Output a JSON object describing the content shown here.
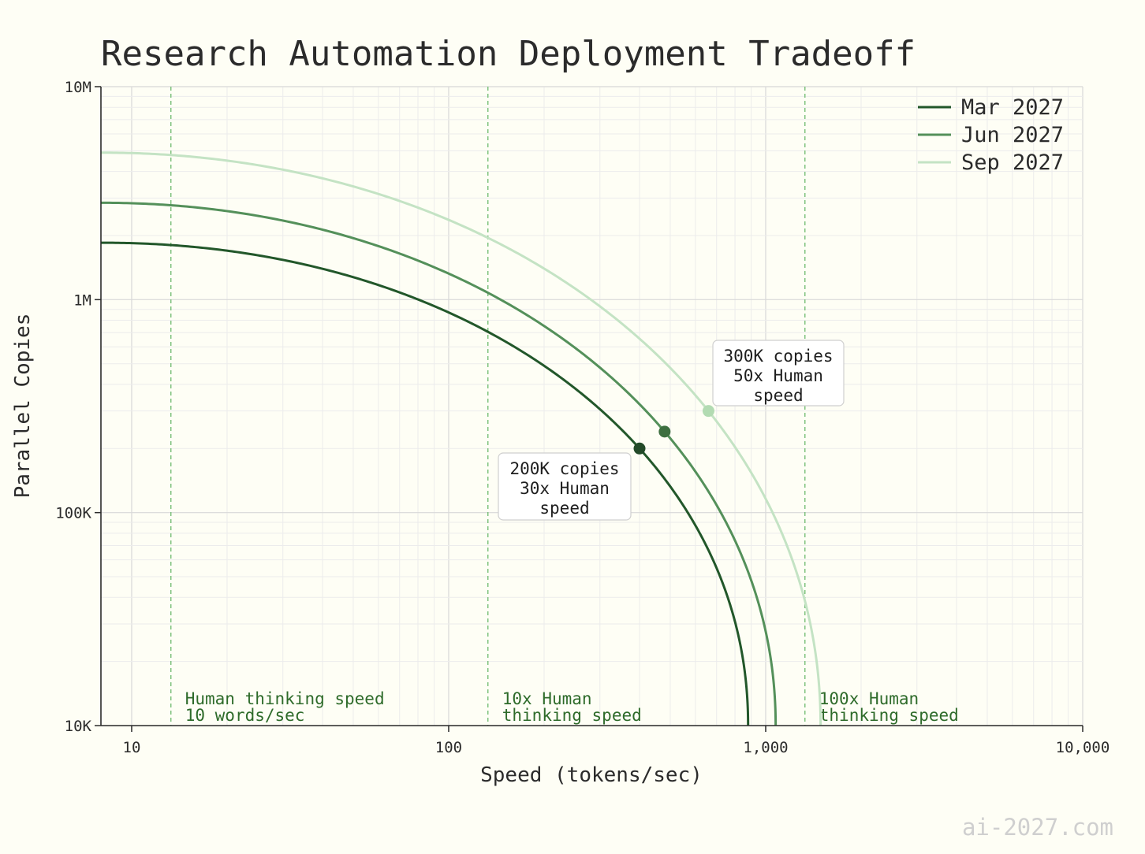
{
  "chart_data": {
    "type": "line",
    "title": "Research Automation Deployment Tradeoff",
    "xlabel": "Speed (tokens/sec)",
    "ylabel": "Parallel Copies",
    "x_scale": "log",
    "y_scale": "log",
    "xlim": [
      8,
      10000
    ],
    "ylim": [
      10000,
      10000000
    ],
    "x_ticks": [
      {
        "value": 10,
        "label": "10"
      },
      {
        "value": 100,
        "label": "100"
      },
      {
        "value": 1000,
        "label": "1,000"
      },
      {
        "value": 10000,
        "label": "10,000"
      }
    ],
    "y_ticks": [
      {
        "value": 10000,
        "label": "10K"
      },
      {
        "value": 100000,
        "label": "100K"
      },
      {
        "value": 1000000,
        "label": "1M"
      },
      {
        "value": 10000000,
        "label": "10M"
      }
    ],
    "grid": true,
    "legend_position": "top-right",
    "series": [
      {
        "name": "Mar 2027",
        "color": "#22572a",
        "max_copies": 1850000,
        "max_speed": 880,
        "marker": {
          "x": 400,
          "y": 200000
        }
      },
      {
        "name": "Jun 2027",
        "color": "#54905a",
        "max_copies": 2850000,
        "max_speed": 1075,
        "marker": {
          "x": 480,
          "y": 240000
        }
      },
      {
        "name": "Sep 2027",
        "color": "#c4e3c4",
        "max_copies": 4900000,
        "max_speed": 1490,
        "marker": {
          "x": 660,
          "y": 300000
        }
      }
    ],
    "reference_lines": [
      {
        "x": 13.3,
        "label_lines": [
          "Human thinking speed",
          "10 words/sec"
        ]
      },
      {
        "x": 133,
        "label_lines": [
          "10x Human",
          "thinking speed"
        ]
      },
      {
        "x": 1330,
        "label_lines": [
          "100x Human",
          "thinking speed"
        ]
      }
    ],
    "annotations": [
      {
        "series": "Mar 2027",
        "lines": [
          "200K copies",
          "30x Human",
          "speed"
        ]
      },
      {
        "series": "Sep 2027",
        "lines": [
          "300K copies",
          "50x Human",
          "speed"
        ]
      }
    ]
  },
  "watermark": "ai-2027.com"
}
